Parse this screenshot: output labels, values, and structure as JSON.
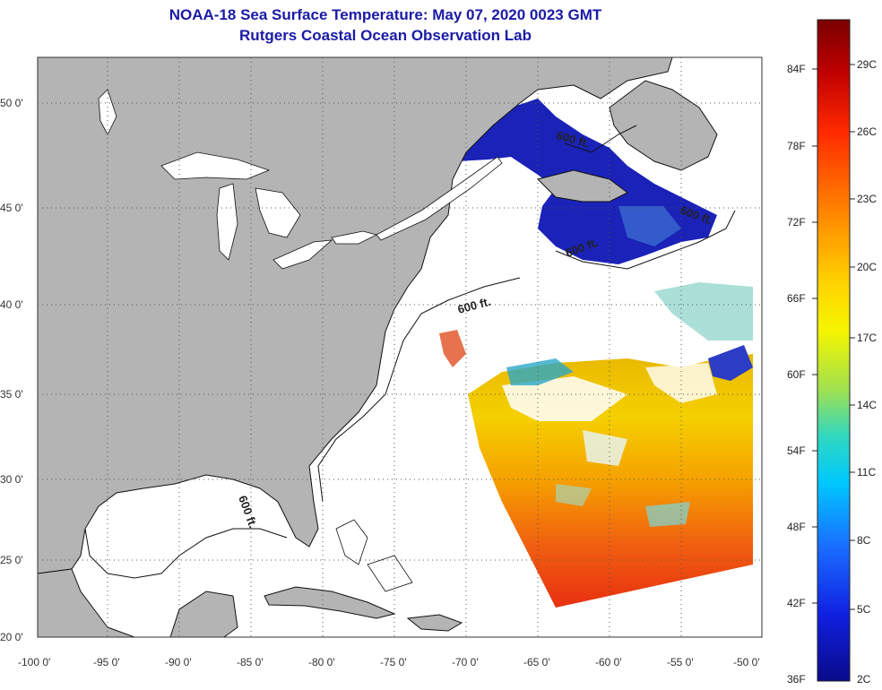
{
  "title": {
    "line1": "NOAA-18 Sea Surface Temperature:  May 07, 2020 0023 GMT",
    "line2": "Rutgers Coastal Ocean Observation Lab"
  },
  "map": {
    "lon_ticks": [
      "-100 0'",
      "-95 0'",
      "-90 0'",
      "-85 0'",
      "-80 0'",
      "-75 0'",
      "-70 0'",
      "-65 0'",
      "-60 0'",
      "-55 0'",
      "-50 0'"
    ],
    "lat_ticks": [
      "50 0'",
      "45 0'",
      "40 0'",
      "35 0'",
      "30 0'",
      "25 0'",
      "20 0'"
    ],
    "contour_labels": [
      "600 ft.",
      "600 ft.",
      "600 ft.",
      "600 ft.",
      "600 ft."
    ],
    "colors": {
      "land": "#b4b4b4",
      "cloud_mask": "#ffffff",
      "grid": "#555555"
    }
  },
  "colorbar": {
    "fahrenheit": [
      "84F",
      "78F",
      "72F",
      "66F",
      "60F",
      "54F",
      "48F",
      "42F",
      "36F"
    ],
    "celsius": [
      "29C",
      "26C",
      "23C",
      "20C",
      "17C",
      "14C",
      "11C",
      "8C",
      "5C",
      "2C"
    ]
  }
}
